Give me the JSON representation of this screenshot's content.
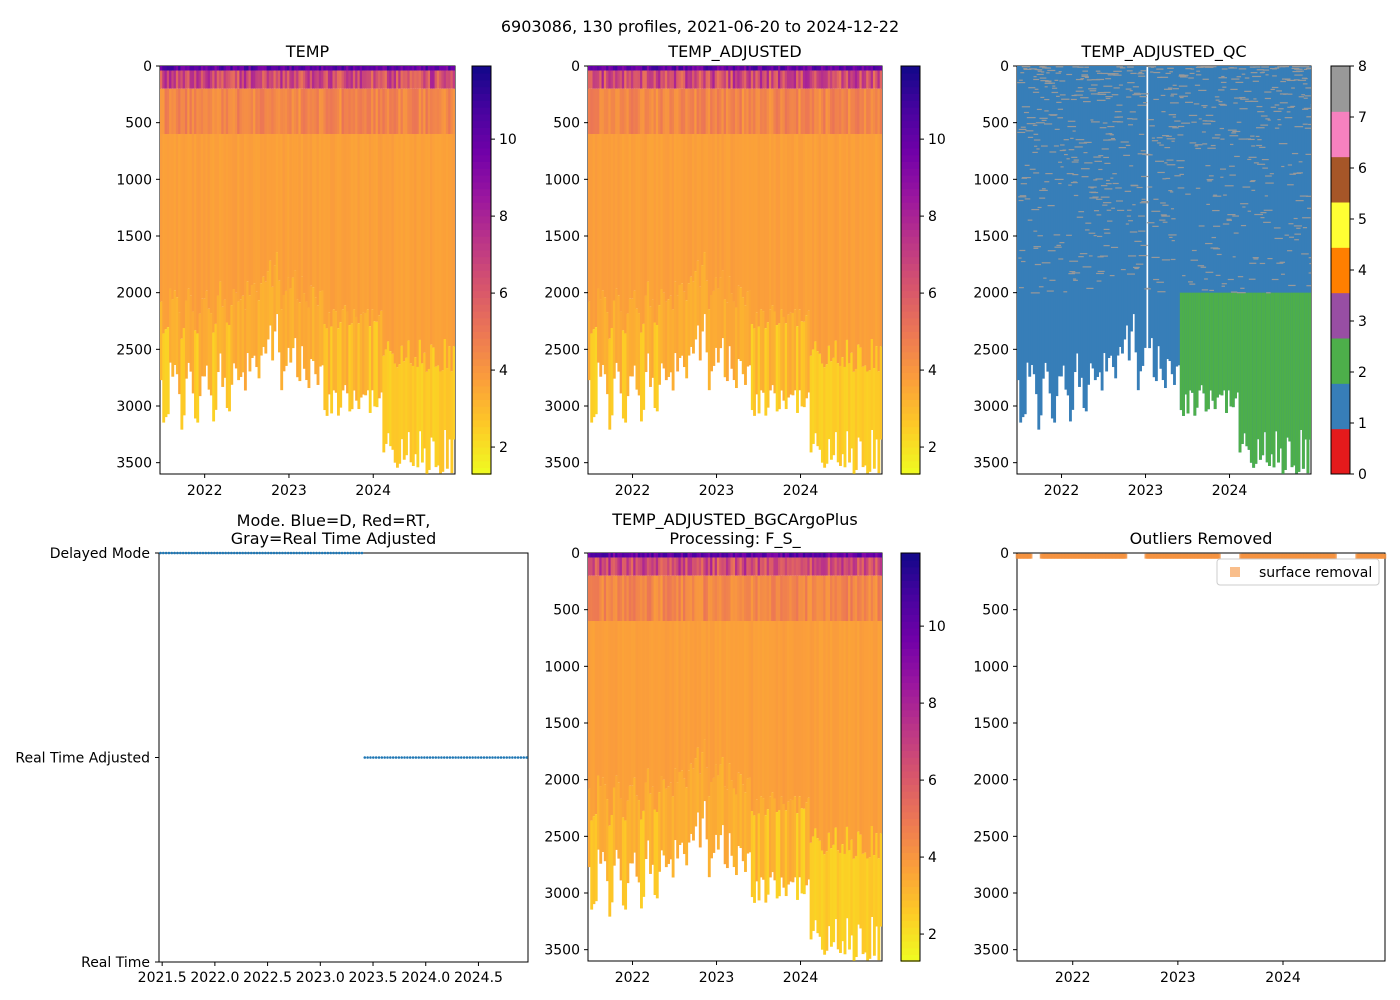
{
  "figure": {
    "suptitle": "6903086, 130 profiles, 2021-06-20 to 2024-12-22"
  },
  "colors": {
    "plasma": [
      "#f0f921",
      "#fdca26",
      "#fb9f3a",
      "#ed7953",
      "#d8576b",
      "#bd3786",
      "#9c179e",
      "#7201a8",
      "#46039f",
      "#0d0887"
    ],
    "qc": [
      "#e41a1c",
      "#377eb8",
      "#4daf4a",
      "#984ea3",
      "#ff7f00",
      "#ffff33",
      "#a65628",
      "#f781bf",
      "#999999"
    ],
    "mode_points": "#1f77b4",
    "outlier": "#f5923e"
  },
  "chart_data": [
    {
      "id": "temp",
      "type": "heatmap",
      "title": "TEMP",
      "x_range": [
        2021.47,
        2024.97
      ],
      "y_range": [
        3600,
        0
      ],
      "x_ticks": [
        {
          "v": 2022,
          "label": "2022"
        },
        {
          "v": 2023,
          "label": "2023"
        },
        {
          "v": 2024,
          "label": "2024"
        }
      ],
      "y_ticks": [
        0,
        500,
        1000,
        1500,
        2000,
        2500,
        3000,
        3500
      ],
      "colorbar": {
        "cmap": "plasma",
        "range": [
          1.3,
          11.9
        ],
        "ticks": [
          2,
          4,
          6,
          8,
          10
        ]
      },
      "surface_temp": 9.5,
      "mid_temp": 3.5,
      "deep_temp": 2.2
    },
    {
      "id": "temp_adj",
      "type": "heatmap",
      "title": "TEMP_ADJUSTED",
      "x_range": [
        2021.47,
        2024.97
      ],
      "y_range": [
        3600,
        0
      ],
      "x_ticks": [
        {
          "v": 2022,
          "label": "2022"
        },
        {
          "v": 2023,
          "label": "2023"
        },
        {
          "v": 2024,
          "label": "2024"
        }
      ],
      "y_ticks": [
        0,
        500,
        1000,
        1500,
        2000,
        2500,
        3000,
        3500
      ],
      "colorbar": {
        "cmap": "plasma",
        "range": [
          1.3,
          11.9
        ],
        "ticks": [
          2,
          4,
          6,
          8,
          10
        ]
      },
      "surface_temp": 9.5,
      "mid_temp": 3.5,
      "deep_temp": 2.2
    },
    {
      "id": "qc",
      "type": "heatmap",
      "title": "TEMP_ADJUSTED_QC",
      "x_range": [
        2021.47,
        2024.97
      ],
      "y_range": [
        3600,
        0
      ],
      "x_ticks": [
        {
          "v": 2022,
          "label": "2022"
        },
        {
          "v": 2023,
          "label": "2023"
        },
        {
          "v": 2024,
          "label": "2024"
        }
      ],
      "y_ticks": [
        0,
        500,
        1000,
        1500,
        2000,
        2500,
        3000,
        3500
      ],
      "colorbar": {
        "cmap": "qc",
        "range": [
          0,
          8
        ],
        "ticks": [
          0,
          1,
          2,
          3,
          4,
          5,
          6,
          7,
          8
        ]
      },
      "flag1_region": "most profiles, all depths",
      "flag2_region": {
        "x_from": 2023.4,
        "depth_from": 2000
      },
      "flag8_speckle_depth": 2000,
      "missing_profile_x": 2023.0
    },
    {
      "id": "mode",
      "type": "scatter",
      "title_lines": [
        "Mode. Blue=D, Red=RT,",
        "Gray=Real Time Adjusted"
      ],
      "x_range": [
        2021.47,
        2024.97
      ],
      "x_ticks": [
        2021.5,
        2022.0,
        2022.5,
        2023.0,
        2023.5,
        2024.0,
        2024.5
      ],
      "x_tick_labels": [
        "2021.5",
        "2022.0",
        "2022.5",
        "2023.0",
        "2023.5",
        "2024.0",
        "2024.5"
      ],
      "y_categories": [
        "Real Time",
        "Real Time Adjusted",
        "Delayed Mode"
      ],
      "series": [
        {
          "name": "Delayed Mode",
          "y": 2,
          "x_from": 2021.47,
          "x_to": 2023.4
        },
        {
          "name": "Real Time Adjusted",
          "y": 1,
          "x_from": 2023.4,
          "x_to": 2024.97
        }
      ]
    },
    {
      "id": "bgc",
      "type": "heatmap",
      "title_lines": [
        "TEMP_ADJUSTED_BGCArgoPlus",
        "Processing: F_S_"
      ],
      "x_range": [
        2021.47,
        2024.97
      ],
      "y_range": [
        3600,
        0
      ],
      "x_ticks": [
        {
          "v": 2022,
          "label": "2022"
        },
        {
          "v": 2023,
          "label": "2023"
        },
        {
          "v": 2024,
          "label": "2024"
        }
      ],
      "y_ticks": [
        0,
        500,
        1000,
        1500,
        2000,
        2500,
        3000,
        3500
      ],
      "colorbar": {
        "cmap": "plasma",
        "range": [
          1.3,
          11.9
        ],
        "ticks": [
          2,
          4,
          6,
          8,
          10
        ]
      },
      "surface_temp": 9.5,
      "mid_temp": 3.5,
      "deep_temp": 2.2
    },
    {
      "id": "outliers",
      "type": "scatter",
      "title": "Outliers Removed",
      "x_range": [
        2021.47,
        2024.97
      ],
      "y_range": [
        3600,
        0
      ],
      "x_ticks": [
        {
          "v": 2022,
          "label": "2022"
        },
        {
          "v": 2023,
          "label": "2023"
        },
        {
          "v": 2024,
          "label": "2024"
        }
      ],
      "y_ticks": [
        0,
        500,
        1000,
        1500,
        2000,
        2500,
        3000,
        3500
      ],
      "legend": {
        "label": "surface removal",
        "placement": "top-right"
      },
      "series": [
        {
          "name": "surface removal",
          "depth_range": [
            0,
            25
          ],
          "gaps": [
            [
              2021.6,
              2021.7
            ],
            [
              2022.5,
              2022.7
            ],
            [
              2023.4,
              2023.6
            ],
            [
              2024.5,
              2024.7
            ]
          ]
        }
      ]
    }
  ]
}
